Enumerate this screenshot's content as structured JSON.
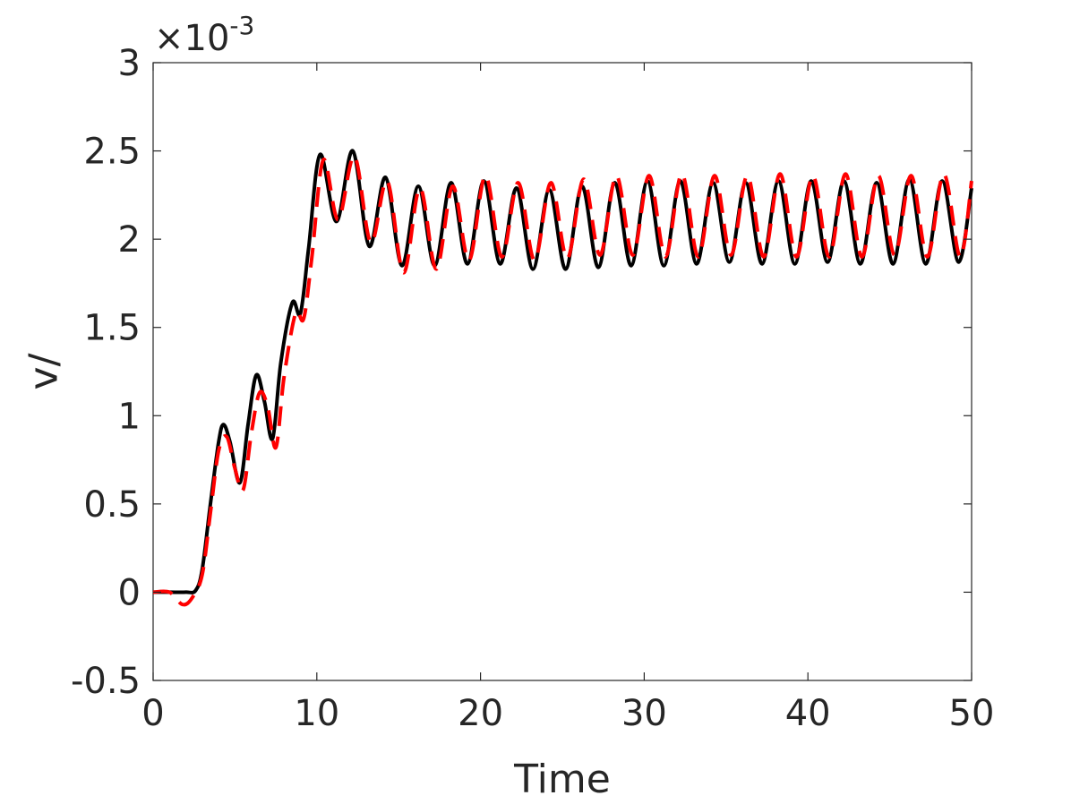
{
  "chart_data": {
    "type": "line",
    "xlabel": "Time",
    "ylabel": "v/",
    "y_multiplier": "×10",
    "y_exponent": "-3",
    "xlim": [
      0,
      50
    ],
    "ylim": [
      -0.0005,
      0.003
    ],
    "x_ticks": [
      0,
      10,
      20,
      30,
      40,
      50
    ],
    "x_tick_labels": [
      "0",
      "10",
      "20",
      "30",
      "40",
      "50"
    ],
    "y_ticks": [
      -0.0005,
      0,
      0.0005,
      0.001,
      0.0015,
      0.002,
      0.0025,
      0.003
    ],
    "y_tick_labels": [
      "-0.5",
      "0",
      "0.5",
      "1",
      "1.5",
      "2",
      "2.5",
      "3"
    ],
    "grid": false,
    "series": [
      {
        "style": "solid",
        "color": "#000000",
        "x": [
          0,
          1.0,
          2.0,
          2.6,
          3.0,
          3.5,
          4.0,
          4.3,
          4.7,
          5.3,
          5.8,
          6.3,
          6.8,
          7.3,
          7.8,
          8.5,
          9.0,
          9.5,
          10.2,
          11.2,
          12.2,
          13.2,
          14.2,
          15.2,
          16.2,
          17.2,
          18.2,
          19.2,
          20.2,
          21.2,
          22.2,
          23.2,
          24.2,
          25.2,
          26.2,
          27.2,
          28.2,
          29.2,
          30.2,
          31.2,
          32.2,
          33.2,
          34.2,
          35.2,
          36.2,
          37.2,
          38.2,
          39.2,
          40.2,
          41.2,
          42.2,
          43.2,
          44.2,
          45.2,
          46.2,
          47.2,
          48.2,
          49.2,
          50.0
        ],
        "y": [
          0,
          0,
          0,
          1e-05,
          0.00013,
          0.0005,
          0.00085,
          0.00095,
          0.00085,
          0.00062,
          0.00095,
          0.00123,
          0.00108,
          0.00087,
          0.0013,
          0.00164,
          0.00158,
          0.00195,
          0.00248,
          0.0021,
          0.0025,
          0.00196,
          0.00235,
          0.00185,
          0.0023,
          0.00185,
          0.00232,
          0.00186,
          0.00233,
          0.00186,
          0.00229,
          0.00183,
          0.00228,
          0.00183,
          0.0023,
          0.00184,
          0.00232,
          0.00185,
          0.00233,
          0.00185,
          0.00233,
          0.00186,
          0.00232,
          0.00187,
          0.00232,
          0.00186,
          0.00233,
          0.00186,
          0.00233,
          0.00187,
          0.00233,
          0.00186,
          0.00232,
          0.00186,
          0.00234,
          0.00186,
          0.00233,
          0.00187,
          0.00229
        ]
      },
      {
        "style": "dashed",
        "color": "#ff0000",
        "x": [
          0,
          1.0,
          1.8,
          2.4,
          3.0,
          3.5,
          4.0,
          4.5,
          5.0,
          5.5,
          6.0,
          6.5,
          7.0,
          7.5,
          8.0,
          8.7,
          9.2,
          9.7,
          10.4,
          11.3,
          12.3,
          13.3,
          14.3,
          15.3,
          16.3,
          17.3,
          18.3,
          19.3,
          20.3,
          21.3,
          22.3,
          23.3,
          24.3,
          25.3,
          26.3,
          27.3,
          28.3,
          29.3,
          30.3,
          31.3,
          32.3,
          33.3,
          34.3,
          35.3,
          36.3,
          37.3,
          38.3,
          39.3,
          40.3,
          41.3,
          42.3,
          43.3,
          44.3,
          45.3,
          46.3,
          47.3,
          48.3,
          49.3,
          50.0
        ],
        "y": [
          0,
          0,
          -7e-05,
          -3e-05,
          0.0001,
          0.00045,
          0.0008,
          0.00088,
          0.0007,
          0.00058,
          0.0009,
          0.00113,
          0.00105,
          0.00082,
          0.00122,
          0.00158,
          0.00155,
          0.0019,
          0.00245,
          0.00211,
          0.00247,
          0.00198,
          0.00233,
          0.00181,
          0.00229,
          0.00183,
          0.0023,
          0.00188,
          0.00236,
          0.0019,
          0.00232,
          0.00188,
          0.00232,
          0.00189,
          0.00234,
          0.00191,
          0.00236,
          0.00191,
          0.00236,
          0.0019,
          0.00237,
          0.0019,
          0.00236,
          0.00191,
          0.00236,
          0.0019,
          0.00237,
          0.0019,
          0.00236,
          0.0019,
          0.00237,
          0.0019,
          0.00236,
          0.00191,
          0.00236,
          0.0019,
          0.00237,
          0.0019,
          0.00233
        ]
      }
    ]
  }
}
